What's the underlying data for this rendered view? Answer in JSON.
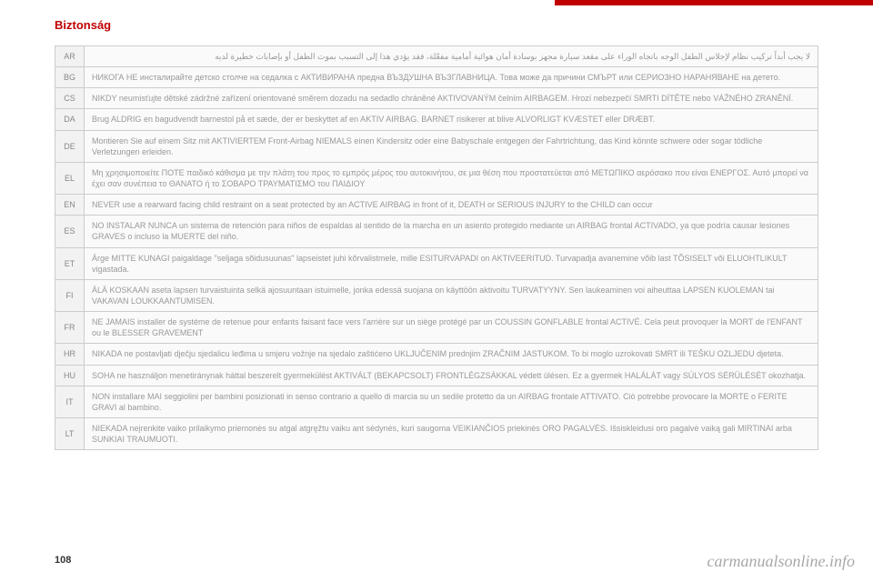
{
  "section_title": "Biztonság",
  "page_number": "108",
  "watermark": "carmanualsonline.info",
  "rows": [
    {
      "code": "AR",
      "text": "لا يجب أبداً تركيب نظام لإجلاس الطفل الوجه باتجاه الوراء على مقعد سيارة مجهز بوسادة أمان هوائية أمامية مفعّلة، فقد يؤدي هذا إلى التسبب بموت الطفل أو بإصابات خطيرة لديه",
      "rtl": true
    },
    {
      "code": "BG",
      "text": "НИКОГА НЕ инсталирайте детско столче на седалка с АКТИВИРАНА предна ВЪЗДУШНА ВЪЗГЛАВНИЦА. Това може да причини СМЪРТ или СЕРИОЗНО НАРАНЯВАНЕ на детето."
    },
    {
      "code": "CS",
      "text": "NIKDY neumisťujte dětské zádržné zařízení orientované směrem dozadu na sedadlo chráněné AKTIVOVANÝM čelním AIRBAGEM. Hrozí nebezpečí SMRTI DÍTĚTE nebo VÁŽNÉHO ZRANĚNÍ."
    },
    {
      "code": "DA",
      "text": "Brug ALDRIG en bagudvendt barnestol på et sæde, der er beskyttet af en AKTIV AIRBAG. BARNET risikerer at blive ALVORLIGT KVÆSTET eller DRÆBT."
    },
    {
      "code": "DE",
      "text": "Montieren Sie auf einem Sitz mit AKTIVIERTEM Front-Airbag NIEMALS einen Kindersitz oder eine Babyschale entgegen der Fahrtrichtung, das Kind könnte schwere oder sogar tödliche Verletzungen erleiden."
    },
    {
      "code": "EL",
      "text": "Μη χρησιμοποιείτε ΠΟΤΕ παιδικό κάθισμα με την πλάτη του προς το εμπρός μέρος του αυτοκινήτου, σε μια θέση που προστατεύεται από ΜΕΤΩΠΙΚΟ αερόσακο που είναι ΕΝΕΡΓΟΣ. Αυτό μπορεί να έχει σαν συνέπεια το ΘΑΝΑΤΟ ή το ΣΟΒΑΡΟ ΤΡΑΥΜΑΤΙΣΜΟ του ΠΑΙΔΙΟΥ"
    },
    {
      "code": "EN",
      "text": "NEVER use a rearward facing child restraint on a seat protected by an ACTIVE AIRBAG in front of it, DEATH or SERIOUS INJURY to the CHILD can occur"
    },
    {
      "code": "ES",
      "text": "NO INSTALAR NUNCA un sistema de retención para niños de espaldas al sentido de la marcha en un asiento protegido mediante un AIRBAG frontal ACTIVADO, ya que podría causar lesiones GRAVES o incluso la MUERTE del niño."
    },
    {
      "code": "ET",
      "text": "Ärge MITTE KUNAGI paigaldage \"seljaga sõidusuunas\" lapseistet juhi kõrvalistmele, mille ESITURVAPADI on AKTIVEERITUD. Turvapadja avanemine võib last TÕSISELT või ELUOHTLIKULT vigastada."
    },
    {
      "code": "FI",
      "text": "ÄLÄ KOSKAAN aseta lapsen turvaistuinta selkä ajosuuntaan istuimelle, jonka edessä suojana on käyttöön aktivoitu TURVATYYNY. Sen laukeaminen voi aiheuttaa LAPSEN KUOLEMAN tai VAKAVAN LOUKKAANTUMISEN."
    },
    {
      "code": "FR",
      "text": "NE JAMAIS installer de système de retenue pour enfants faisant face vers l'arrière sur un siège protégé par un COUSSIN GONFLABLE frontal ACTIVÉ.\nCela peut provoquer la MORT de l'ENFANT ou le BLESSER GRAVEMENT"
    },
    {
      "code": "HR",
      "text": "NIKADA ne postavljati dječju sjedalicu leđima u smjeru vožnje na sjedalo zaštićeno UKLJUČENIM prednjim ZRAČNIM JASTUKOM. To bi moglo uzrokovati SMRT ili TEŠKU OZLJEDU djeteta."
    },
    {
      "code": "HU",
      "text": "SOHA ne használjon menetiránynak háttal beszerelt gyermekülést AKTIVÁLT (BEKAPCSOLT) FRONTLÉGZSÁKKAL védett ülésen. Ez a gyermek HALÁLÁT vagy SÚLYOS SÉRÜLÉSÉT okozhatja."
    },
    {
      "code": "IT",
      "text": "NON installare MAI seggiolini per bambini posizionati in senso contrario a quello di marcia su un sedile protetto da un AIRBAG frontale ATTIVATO. Ciò potrebbe provocare la MORTE o FERITE GRAVI al bambino."
    },
    {
      "code": "LT",
      "text": "NIEKADA neįrenkite vaiko prilaikymo priemonės su atgal atgręžtu vaiku ant sėdynės, kuri saugoma VEIKIANČIOS priekinės ORO PAGALVĖS. Išsiskleidusi oro pagalvė vaiką gali MIRTINAI arba SUNKIAI TRAUMUOTI."
    }
  ]
}
